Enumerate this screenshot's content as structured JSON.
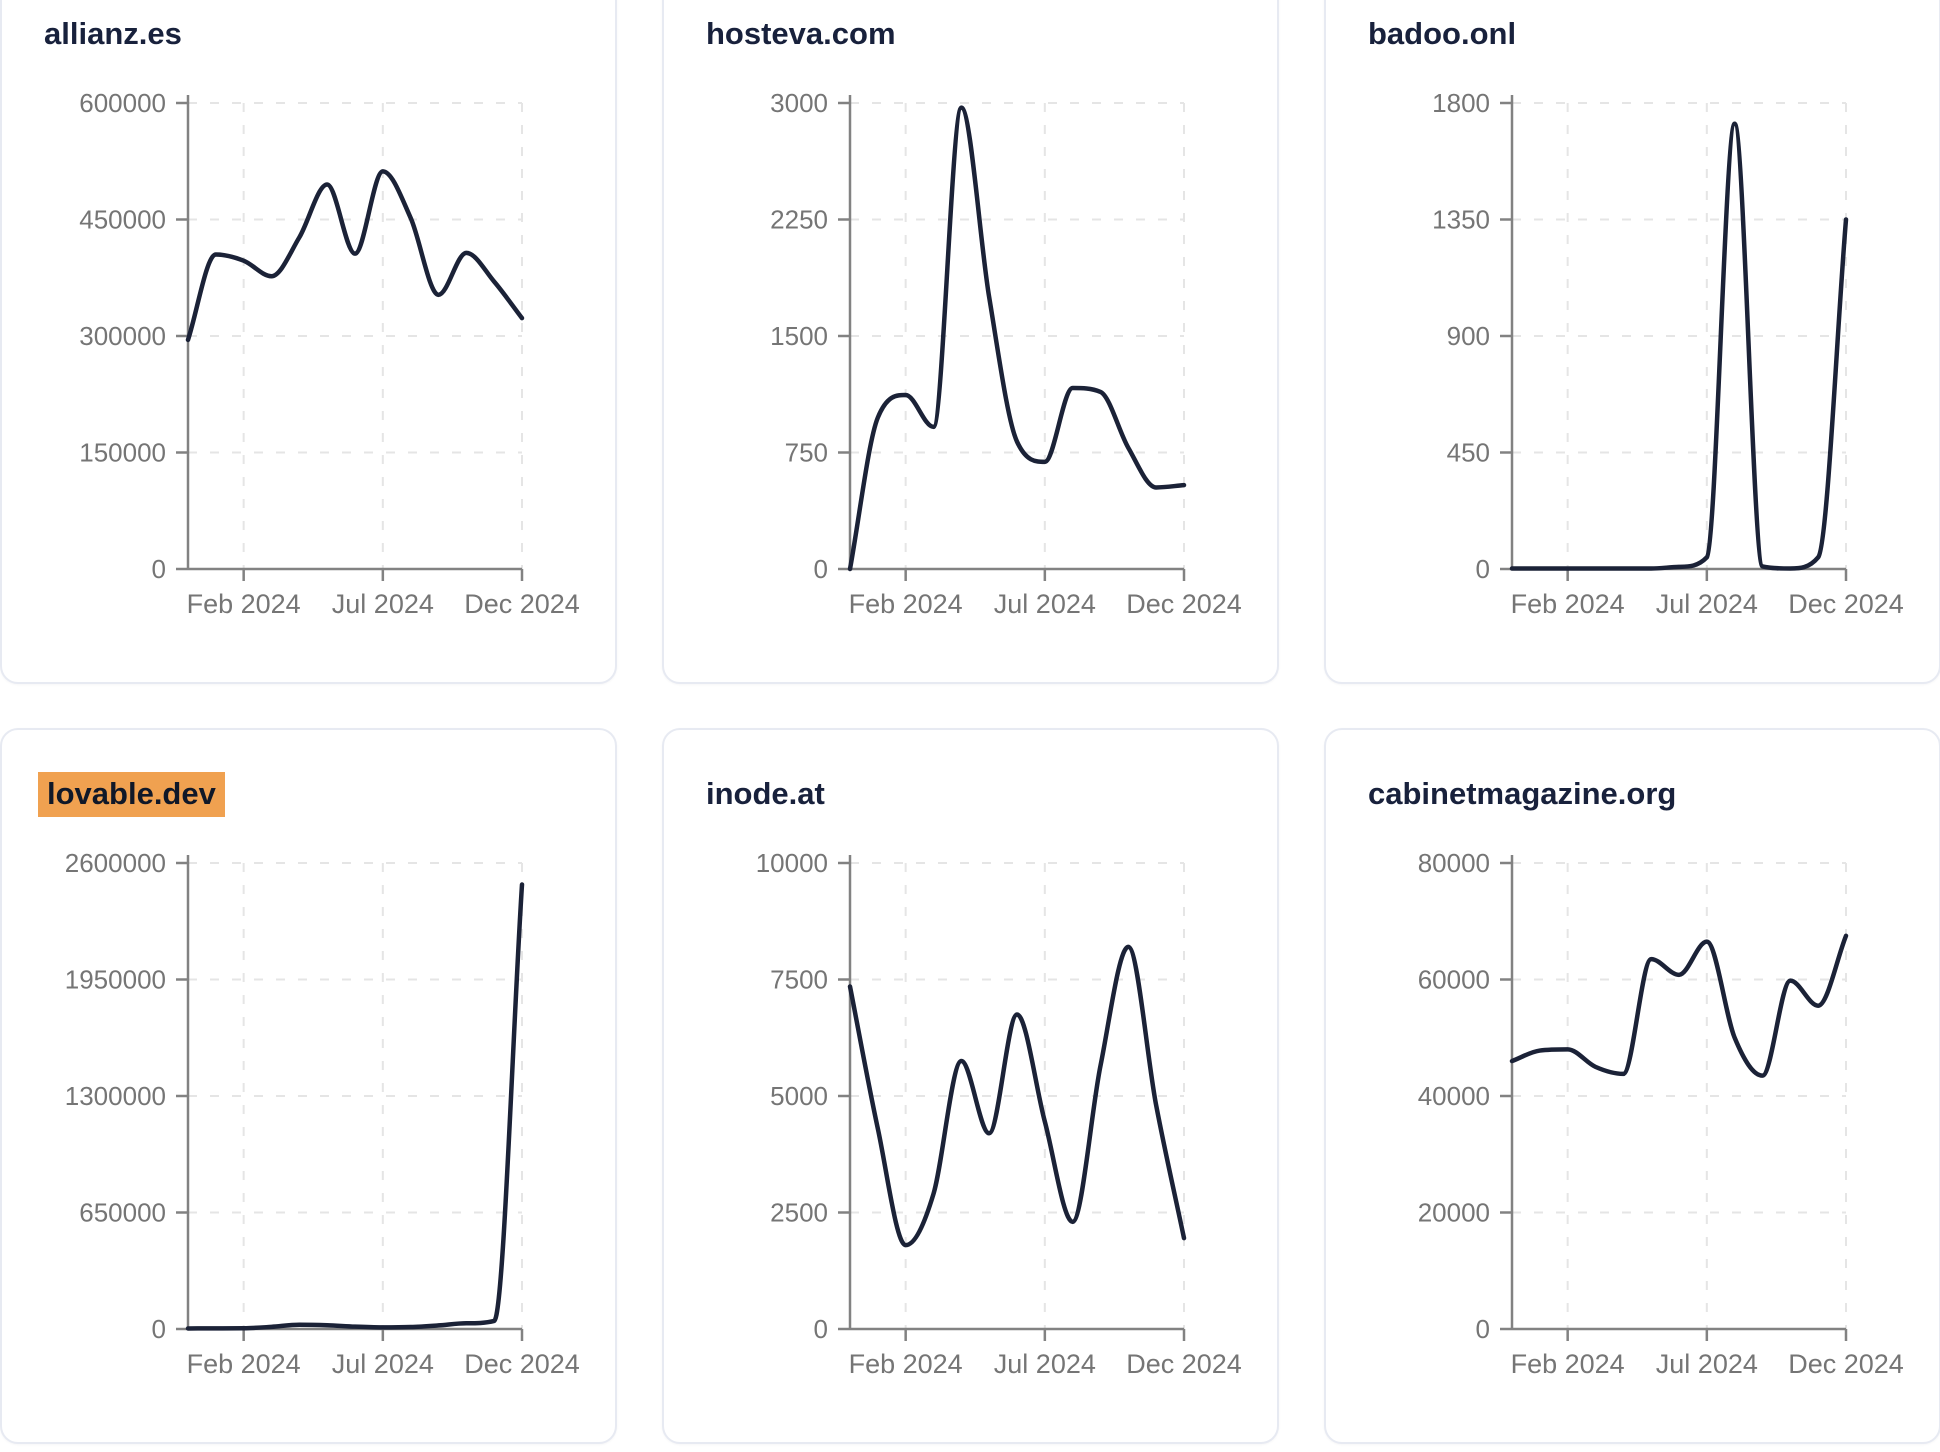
{
  "style": {
    "background": "#ffffff",
    "card_border": "#e7eaf2",
    "title_color": "#18213c",
    "line_color": "#1b2237",
    "tick_label_color": "#757575",
    "axis_color": "#828282",
    "grid_color": "#e5e5e5",
    "highlight_color": "#f0a150"
  },
  "chart_data": [
    {
      "type": "line",
      "title": "allianz.es",
      "highlighted": false,
      "color": "#1b2237",
      "ylim": [
        0,
        600000
      ],
      "y_ticks": [
        0,
        150000,
        300000,
        450000,
        600000
      ],
      "x_ticks": [
        {
          "label": "Feb 2024",
          "index": 2
        },
        {
          "label": "Jul 2024",
          "index": 7
        },
        {
          "label": "Dec 2024",
          "index": 12
        }
      ],
      "values": [
        295000,
        405000,
        397000,
        377000,
        427000,
        495000,
        406000,
        512000,
        452000,
        353000,
        407000,
        370000,
        323000
      ]
    },
    {
      "type": "line",
      "title": "hosteva.com",
      "highlighted": false,
      "color": "#1b2237",
      "ylim": [
        0,
        3000
      ],
      "y_ticks": [
        0,
        750,
        1500,
        2250,
        3000
      ],
      "x_ticks": [
        {
          "label": "Feb 2024",
          "index": 2
        },
        {
          "label": "Jul 2024",
          "index": 7
        },
        {
          "label": "Dec 2024",
          "index": 12
        }
      ],
      "values": [
        0,
        975,
        1120,
        915,
        2970,
        1750,
        820,
        690,
        1165,
        1140,
        780,
        525,
        540
      ]
    },
    {
      "type": "line",
      "title": "badoo.onl",
      "highlighted": false,
      "color": "#1b2237",
      "ylim": [
        0,
        1800
      ],
      "y_ticks": [
        0,
        450,
        900,
        1350,
        1800
      ],
      "x_ticks": [
        {
          "label": "Feb 2024",
          "index": 2
        },
        {
          "label": "Jul 2024",
          "index": 7
        },
        {
          "label": "Dec 2024",
          "index": 12
        }
      ],
      "values": [
        2,
        2,
        2,
        2,
        2,
        2,
        8,
        45,
        1720,
        10,
        2,
        45,
        1350
      ]
    },
    {
      "type": "line",
      "title": "lovable.dev",
      "highlighted": true,
      "color": "#1b2237",
      "ylim": [
        0,
        2600000
      ],
      "y_ticks": [
        0,
        650000,
        1300000,
        1950000,
        2600000
      ],
      "x_ticks": [
        {
          "label": "Feb 2024",
          "index": 2
        },
        {
          "label": "Jul 2024",
          "index": 7
        },
        {
          "label": "Dec 2024",
          "index": 12
        }
      ],
      "values": [
        3000,
        3500,
        4000,
        12000,
        24000,
        21000,
        13000,
        9000,
        11000,
        20000,
        32000,
        45000,
        2480000
      ]
    },
    {
      "type": "line",
      "title": "inode.at",
      "highlighted": false,
      "color": "#1b2237",
      "ylim": [
        0,
        10000
      ],
      "y_ticks": [
        0,
        2500,
        5000,
        7500,
        10000
      ],
      "x_ticks": [
        {
          "label": "Feb 2024",
          "index": 2
        },
        {
          "label": "Jul 2024",
          "index": 7
        },
        {
          "label": "Dec 2024",
          "index": 12
        }
      ],
      "values": [
        7350,
        4300,
        1800,
        2900,
        5750,
        4200,
        6750,
        4450,
        2300,
        5650,
        8200,
        4800,
        1950
      ]
    },
    {
      "type": "line",
      "title": "cabinetmagazine.org",
      "highlighted": false,
      "color": "#1b2237",
      "ylim": [
        0,
        80000
      ],
      "y_ticks": [
        0,
        20000,
        40000,
        60000,
        80000
      ],
      "x_ticks": [
        {
          "label": "Feb 2024",
          "index": 2
        },
        {
          "label": "Jul 2024",
          "index": 7
        },
        {
          "label": "Dec 2024",
          "index": 12
        }
      ],
      "values": [
        46000,
        47800,
        48000,
        45000,
        43800,
        63500,
        60800,
        66500,
        50000,
        43500,
        59800,
        55500,
        67500
      ]
    }
  ]
}
